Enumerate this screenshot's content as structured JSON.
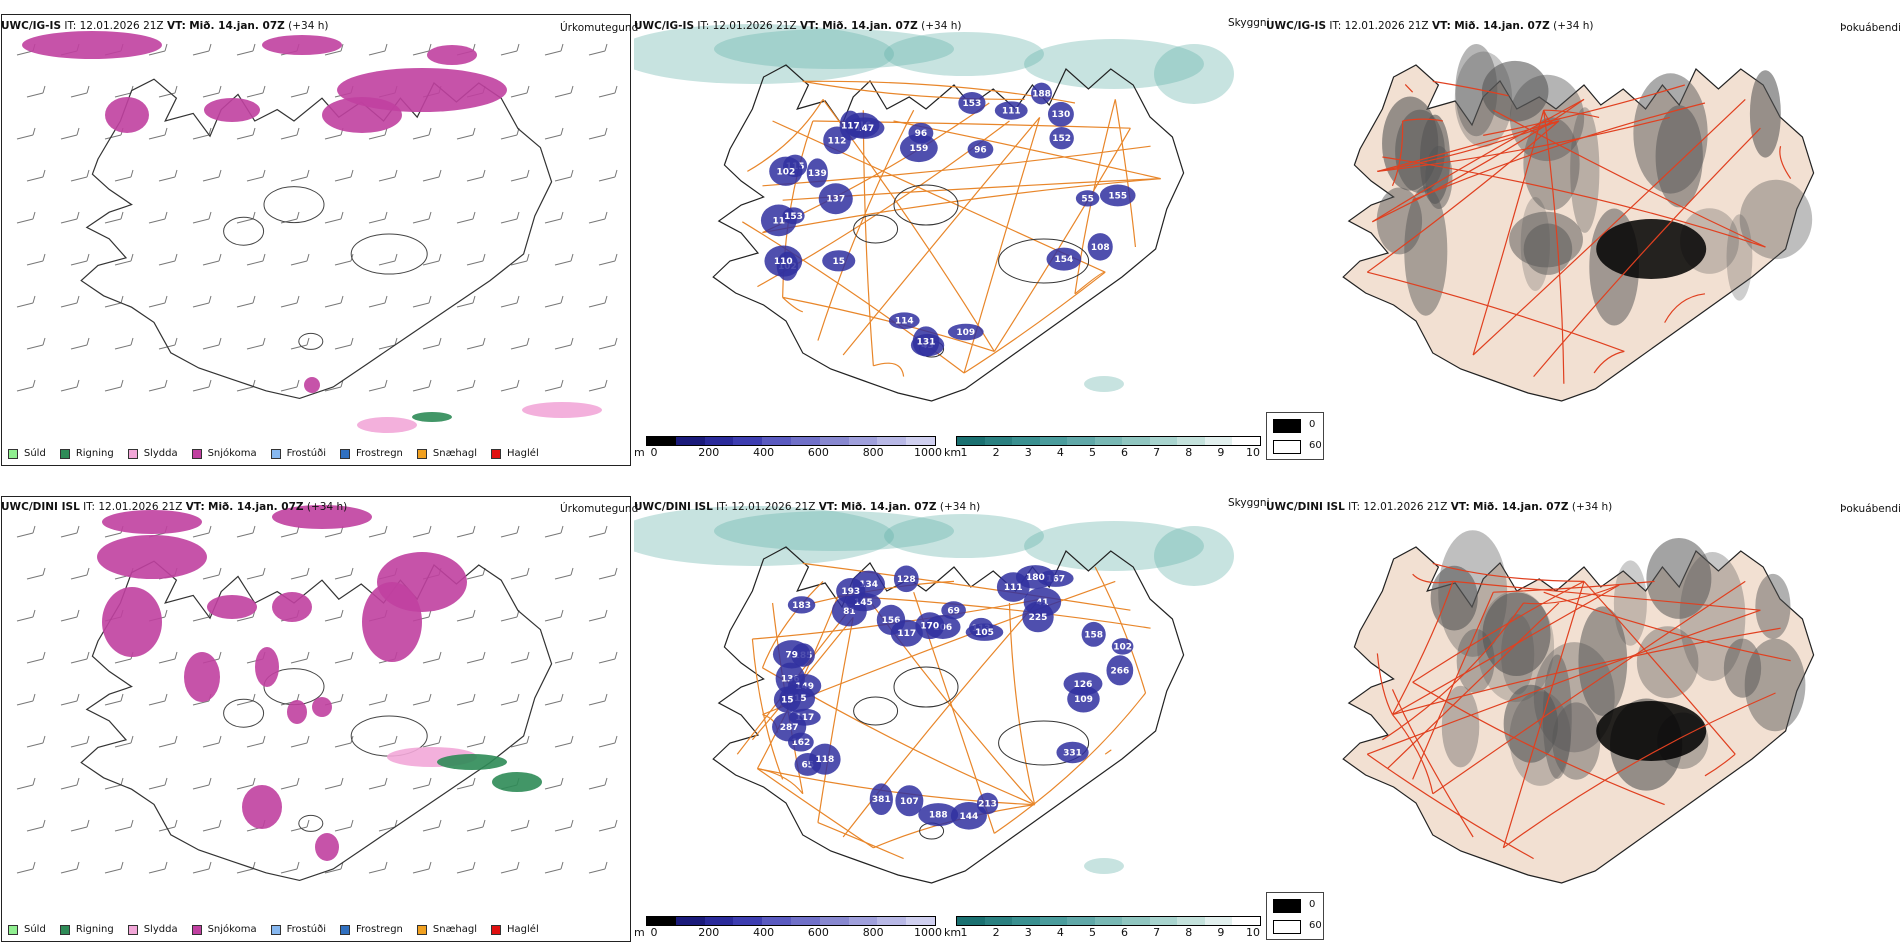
{
  "rows": [
    {
      "model": "UWC/IG-IS",
      "it_label": "IT:",
      "it_value": "12.01.2026 21Z",
      "vt_label": "VT:",
      "vt_value": "Mið. 14.jan. 07Z",
      "lead": "(+34 h)",
      "precip_title": "Úrkomutegund",
      "vis_title": "Skyggni",
      "fog_title": "Þokuábendi",
      "vis_labels": [
        "115",
        "116",
        "96",
        "130",
        "154",
        "114",
        "11",
        "102",
        "147",
        "153",
        "152",
        "108",
        "43",
        "102",
        "139",
        "112",
        "159",
        "188",
        "55",
        "131",
        "110",
        "137",
        "117",
        "96",
        "111",
        "155",
        "109",
        "15",
        "153"
      ]
    },
    {
      "model": "UWC/DINI ISL",
      "it_label": "IT:",
      "it_value": "12.01.2026 21Z",
      "vt_label": "VT:",
      "vt_value": "Mið. 14.jan. 07Z",
      "lead": "(+34 h)",
      "precip_title": "Úrkomutegund",
      "vis_title": "Skyggni",
      "fog_title": "Þokuábendi",
      "vis_labels": [
        "185",
        "156",
        "113",
        "167",
        "331",
        "381",
        "117",
        "79",
        "81",
        "69",
        "41",
        "109",
        "107",
        "162",
        "136",
        "145",
        "206",
        "180",
        "126",
        "188",
        "287",
        "149",
        "134",
        "170",
        "225",
        "266",
        "144",
        "65",
        "215",
        "193",
        "117",
        "111",
        "102",
        "213",
        "118",
        "15",
        "183",
        "128",
        "105",
        "158"
      ]
    }
  ],
  "precip_legend": [
    {
      "label": "Súld",
      "color": "#90ee90"
    },
    {
      "label": "Rigning",
      "color": "#2e8b57"
    },
    {
      "label": "Slydda",
      "color": "#f2a7d8"
    },
    {
      "label": "Snjókoma",
      "color": "#c040a0"
    },
    {
      "label": "Frostúði",
      "color": "#87b8f0"
    },
    {
      "label": "Frostregn",
      "color": "#3070c0"
    },
    {
      "label": "Snæhagl",
      "color": "#f0a020"
    },
    {
      "label": "Haglél",
      "color": "#e01010"
    }
  ],
  "height_scale": {
    "unit": "m",
    "ticks": [
      "0",
      "200",
      "400",
      "600",
      "800",
      "1000"
    ],
    "colors": [
      "#000000",
      "#1a1a7a",
      "#2a2a9a",
      "#3d3db0",
      "#5a5ac0",
      "#7070c8",
      "#8888d0",
      "#a0a0dc",
      "#b8b8e6",
      "#d0d0f0"
    ]
  },
  "km_scale": {
    "unit": "km",
    "ticks": [
      "1",
      "2",
      "3",
      "4",
      "5",
      "6",
      "7",
      "8",
      "9",
      "10"
    ],
    "colors": [
      "#1a7070",
      "#2a8080",
      "#3a9090",
      "#4a9c9c",
      "#60a8a8",
      "#78b8b4",
      "#90c6c0",
      "#a8d4ce",
      "#c4e2dc",
      "#e2f0ee",
      "#ffffff"
    ]
  },
  "fog_scale": {
    "low": "0",
    "high": "60"
  },
  "colors": {
    "snow": "#c040a0",
    "sleet": "#f2a7d8",
    "rain": "#2e8b57",
    "vis_dark": "#3030a0",
    "vis_teal": "#5fb0a6",
    "road": "#e8862a",
    "fog_land": "#f2e0d2",
    "fog_road": "#e04020"
  }
}
